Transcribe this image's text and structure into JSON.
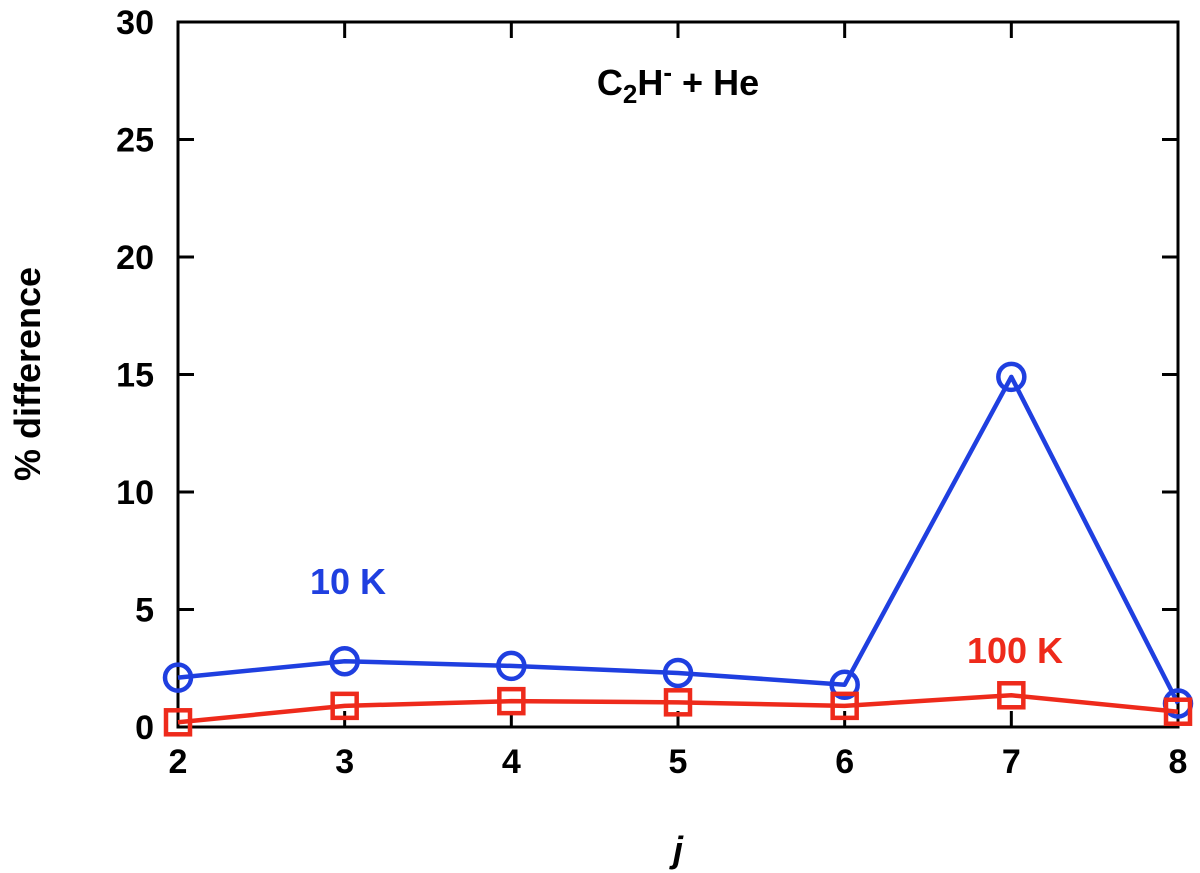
{
  "chart_data": {
    "type": "line",
    "title_parts": {
      "main": "C",
      "sub": "2",
      "mid": "H",
      "sup": "-",
      "tail": " + He"
    },
    "xlabel": "j",
    "ylabel": "% difference",
    "xlim": [
      2,
      8
    ],
    "ylim": [
      0,
      30
    ],
    "x_ticks": [
      "2",
      "3",
      "4",
      "5",
      "6",
      "7",
      "8"
    ],
    "y_ticks": [
      "0",
      "5",
      "10",
      "15",
      "20",
      "25",
      "30"
    ],
    "grid": false,
    "x": [
      2,
      3,
      4,
      5,
      6,
      7,
      8
    ],
    "series": [
      {
        "name": "10 K",
        "marker": "circle",
        "color": "#1f3fe0",
        "values": [
          2.1,
          2.8,
          2.6,
          2.3,
          1.8,
          14.9,
          1.0
        ]
      },
      {
        "name": "100 K",
        "marker": "square",
        "color": "#ee2a1b",
        "values": [
          0.2,
          0.9,
          1.1,
          1.05,
          0.9,
          1.35,
          0.65
        ]
      }
    ]
  }
}
